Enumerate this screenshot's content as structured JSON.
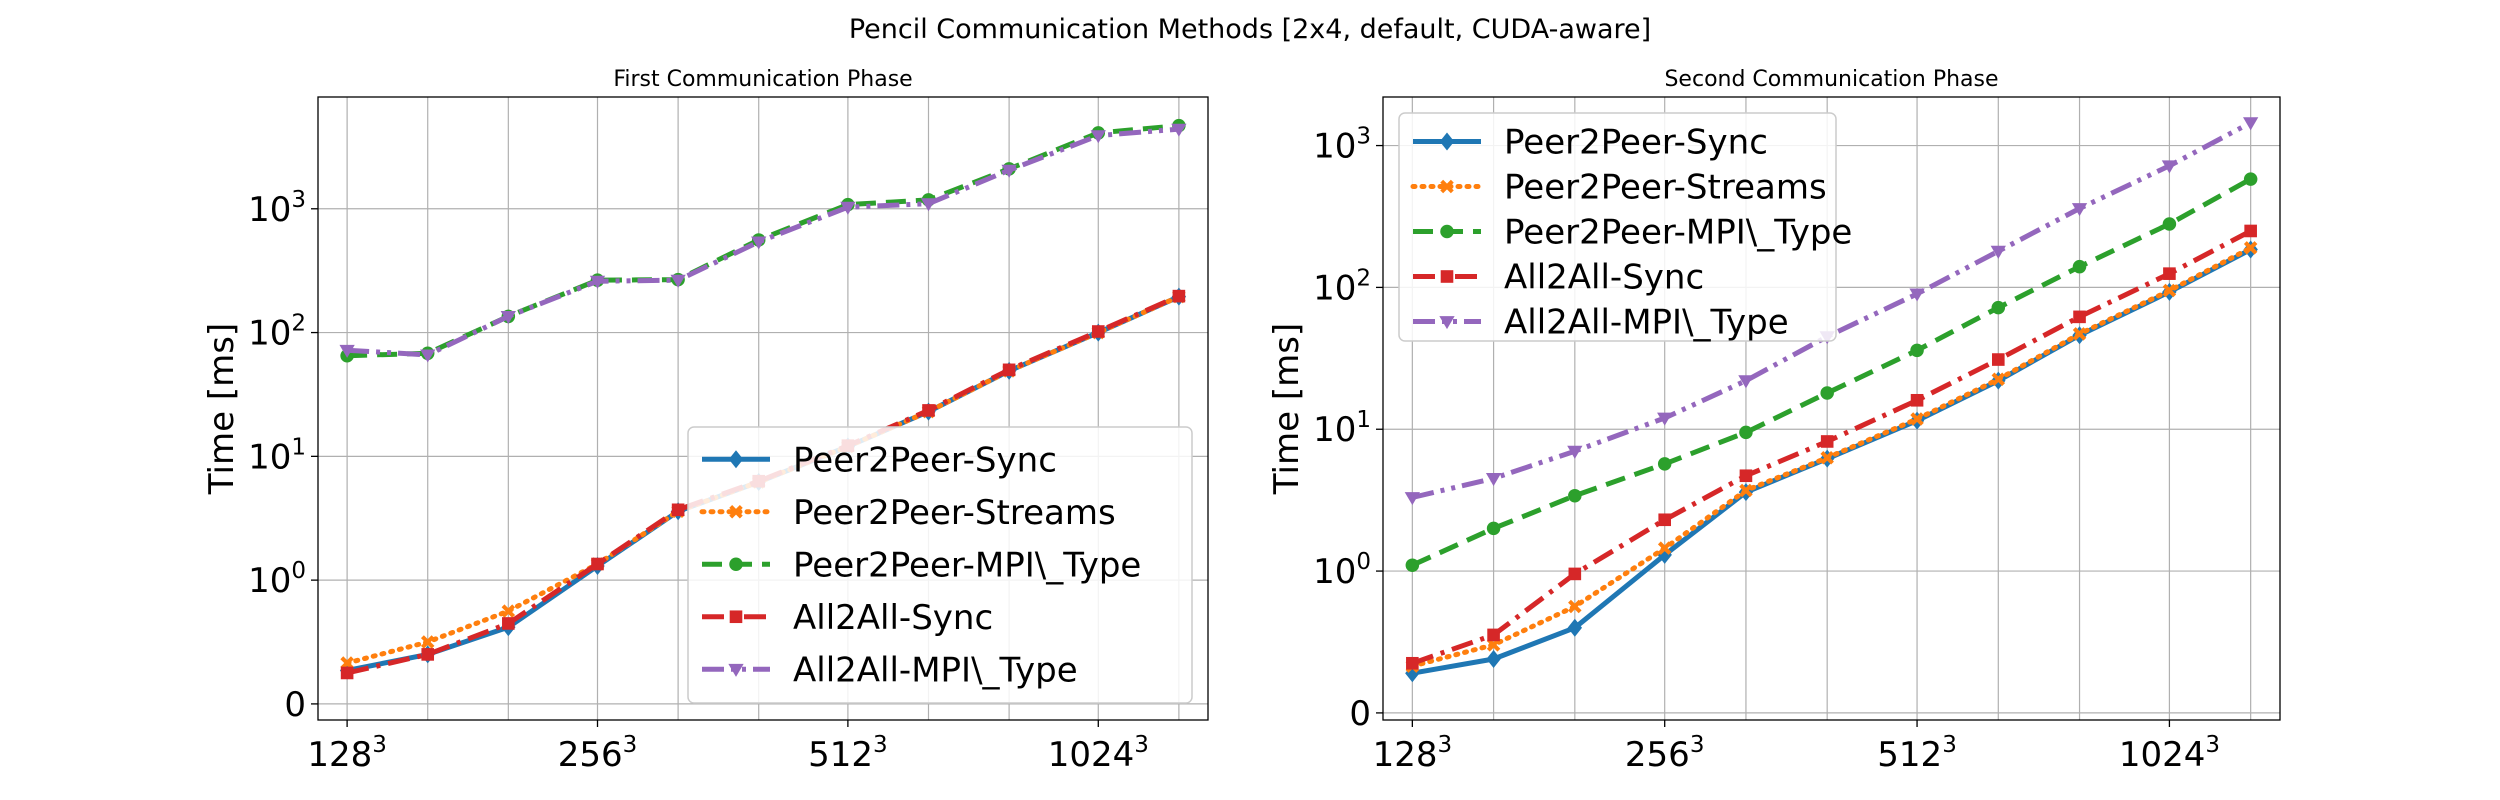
{
  "figure": {
    "suptitle": "Pencil Communication Methods [2x4, default, CUDA-aware]"
  },
  "chart_data": [
    {
      "type": "line",
      "title": "First Communication Phase",
      "xlabel": "",
      "ylabel": "Time [ms]",
      "yscale": "symlog",
      "grid": true,
      "legend_loc": "lower-right",
      "x": [
        128,
        160,
        200,
        256,
        320,
        400,
        512,
        640,
        800,
        1024,
        1280
      ],
      "xticks": [
        {
          "base": "128",
          "exp": "3",
          "x": 128
        },
        {
          "base": "256",
          "exp": "3",
          "x": 256
        },
        {
          "base": "512",
          "exp": "3",
          "x": 512
        },
        {
          "base": "1024",
          "exp": "3",
          "x": 1024
        }
      ],
      "yticks": [
        {
          "text": "0",
          "base": "",
          "exp": "",
          "y": 0
        },
        {
          "text": "",
          "base": "10",
          "exp": "0",
          "y": 1
        },
        {
          "text": "",
          "base": "10",
          "exp": "1",
          "y": 10
        },
        {
          "text": "",
          "base": "10",
          "exp": "2",
          "y": 100
        },
        {
          "text": "",
          "base": "10",
          "exp": "3",
          "y": 1000
        }
      ],
      "series": [
        {
          "name": "Peer2Peer-Sync",
          "color": "#1f77b4",
          "marker": "diamond",
          "dash": "solid",
          "values": [
            0.27,
            0.4,
            0.62,
            1.3,
            3.6,
            6.2,
            12.0,
            23.0,
            49.0,
            100.0,
            195.0
          ]
        },
        {
          "name": "Peer2Peer-Streams",
          "color": "#ff7f0e",
          "marker": "x",
          "dash": "dotted",
          "values": [
            0.33,
            0.5,
            0.75,
            1.35,
            3.6,
            6.2,
            12.0,
            23.0,
            49.0,
            100.0,
            195.0
          ]
        },
        {
          "name": "Peer2Peer-MPI\\_Type",
          "color": "#2ca02c",
          "marker": "circle",
          "dash": "dashed",
          "values": [
            65.0,
            68.0,
            135.0,
            265.0,
            268.0,
            560.0,
            1080.0,
            1180.0,
            2100.0,
            4100.0,
            4700.0
          ]
        },
        {
          "name": "All2All-Sync",
          "color": "#d62728",
          "marker": "square",
          "dash": "dashdot",
          "values": [
            0.25,
            0.4,
            0.65,
            1.35,
            3.7,
            6.3,
            12.2,
            23.5,
            50.0,
            102.0,
            197.0
          ]
        },
        {
          "name": "All2All-MPI\\_Type",
          "color": "#9467bd",
          "marker": "triangle-down",
          "dash": "dashdotdot",
          "values": [
            72.0,
            66.0,
            135.0,
            260.0,
            265.0,
            540.0,
            1030.0,
            1100.0,
            2050.0,
            3900.0,
            4400.0
          ]
        }
      ]
    },
    {
      "type": "line",
      "title": "Second Communication Phase",
      "xlabel": "",
      "ylabel": "Time [ms]",
      "yscale": "symlog",
      "grid": true,
      "legend_loc": "upper-left",
      "x": [
        128,
        160,
        200,
        256,
        320,
        400,
        512,
        640,
        800,
        1024,
        1280
      ],
      "xticks": [
        {
          "base": "128",
          "exp": "3",
          "x": 128
        },
        {
          "base": "256",
          "exp": "3",
          "x": 256
        },
        {
          "base": "512",
          "exp": "3",
          "x": 512
        },
        {
          "base": "1024",
          "exp": "3",
          "x": 1024
        }
      ],
      "yticks": [
        {
          "text": "0",
          "base": "",
          "exp": "",
          "y": 0
        },
        {
          "text": "",
          "base": "10",
          "exp": "0",
          "y": 1
        },
        {
          "text": "",
          "base": "10",
          "exp": "1",
          "y": 10
        },
        {
          "text": "",
          "base": "10",
          "exp": "2",
          "y": 100
        },
        {
          "text": "",
          "base": "10",
          "exp": "3",
          "y": 1000
        }
      ],
      "series": [
        {
          "name": "Peer2Peer-Sync",
          "color": "#1f77b4",
          "marker": "diamond",
          "dash": "solid",
          "values": [
            0.28,
            0.38,
            0.6,
            1.3,
            3.6,
            6.2,
            11.5,
            22.0,
            46.0,
            93.0,
            185.0
          ]
        },
        {
          "name": "Peer2Peer-Streams",
          "color": "#ff7f0e",
          "marker": "x",
          "dash": "dotted",
          "values": [
            0.33,
            0.48,
            0.75,
            1.45,
            3.7,
            6.3,
            11.8,
            22.5,
            47.0,
            95.0,
            190.0
          ]
        },
        {
          "name": "Peer2Peer-MPI\\_Type",
          "color": "#2ca02c",
          "marker": "circle",
          "dash": "dashed",
          "values": [
            1.1,
            2.0,
            3.4,
            5.7,
            9.5,
            18.0,
            36.0,
            72.0,
            140.0,
            280.0,
            580.0
          ]
        },
        {
          "name": "All2All-Sync",
          "color": "#d62728",
          "marker": "square",
          "dash": "dashdot",
          "values": [
            0.35,
            0.55,
            0.98,
            2.3,
            4.7,
            8.2,
            16.0,
            31.0,
            62.0,
            125.0,
            250.0
          ]
        },
        {
          "name": "All2All-MPI\\_Type",
          "color": "#9467bd",
          "marker": "triangle-down",
          "dash": "dashdotdot",
          "values": [
            3.3,
            4.5,
            7.0,
            12.0,
            22.0,
            45.0,
            90.0,
            180.0,
            360.0,
            720.0,
            1450.0
          ]
        }
      ]
    }
  ]
}
